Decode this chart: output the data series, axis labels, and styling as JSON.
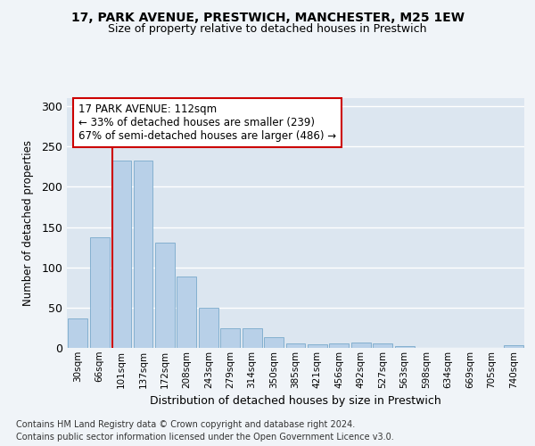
{
  "title1": "17, PARK AVENUE, PRESTWICH, MANCHESTER, M25 1EW",
  "title2": "Size of property relative to detached houses in Prestwich",
  "xlabel": "Distribution of detached houses by size in Prestwich",
  "ylabel": "Number of detached properties",
  "categories": [
    "30sqm",
    "66sqm",
    "101sqm",
    "137sqm",
    "172sqm",
    "208sqm",
    "243sqm",
    "279sqm",
    "314sqm",
    "350sqm",
    "385sqm",
    "421sqm",
    "456sqm",
    "492sqm",
    "527sqm",
    "563sqm",
    "598sqm",
    "634sqm",
    "669sqm",
    "705sqm",
    "740sqm"
  ],
  "values": [
    37,
    137,
    233,
    232,
    131,
    89,
    50,
    24,
    24,
    13,
    6,
    4,
    5,
    7,
    6,
    2,
    0,
    0,
    0,
    0,
    3
  ],
  "bar_color": "#b8d0e8",
  "bar_edge_color": "#7aaacb",
  "red_line_x": 1.575,
  "annotation_text": "17 PARK AVENUE: 112sqm\n← 33% of detached houses are smaller (239)\n67% of semi-detached houses are larger (486) →",
  "annotation_box_color": "#ffffff",
  "annotation_box_edge": "#cc0000",
  "ylim": [
    0,
    310
  ],
  "yticks": [
    0,
    50,
    100,
    150,
    200,
    250,
    300
  ],
  "background_color": "#dce6f0",
  "grid_color": "#ffffff",
  "fig_bg": "#f0f4f8",
  "footer1": "Contains HM Land Registry data © Crown copyright and database right 2024.",
  "footer2": "Contains public sector information licensed under the Open Government Licence v3.0."
}
